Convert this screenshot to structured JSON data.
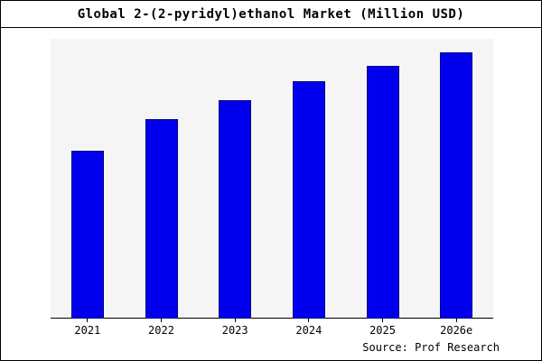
{
  "title": "Global 2-(2-pyridyl)ethanol Market (Million USD)",
  "source": "Source: Prof Research",
  "colors": {
    "bar_fill": "#0000ee",
    "bar_border": "#000080",
    "plot_bg": "#f5f5f5",
    "axis": "#000000"
  },
  "chart_data": {
    "type": "bar",
    "title": "Global 2-(2-pyridyl)ethanol Market (Million USD)",
    "categories": [
      "2021",
      "2022",
      "2023",
      "2024",
      "2025",
      "2026e"
    ],
    "values": [
      63,
      75,
      82,
      89,
      95,
      100
    ],
    "xlabel": "",
    "ylabel": "",
    "ylim": [
      0,
      105
    ],
    "grid": false,
    "legend": false,
    "legend_position": "none"
  }
}
